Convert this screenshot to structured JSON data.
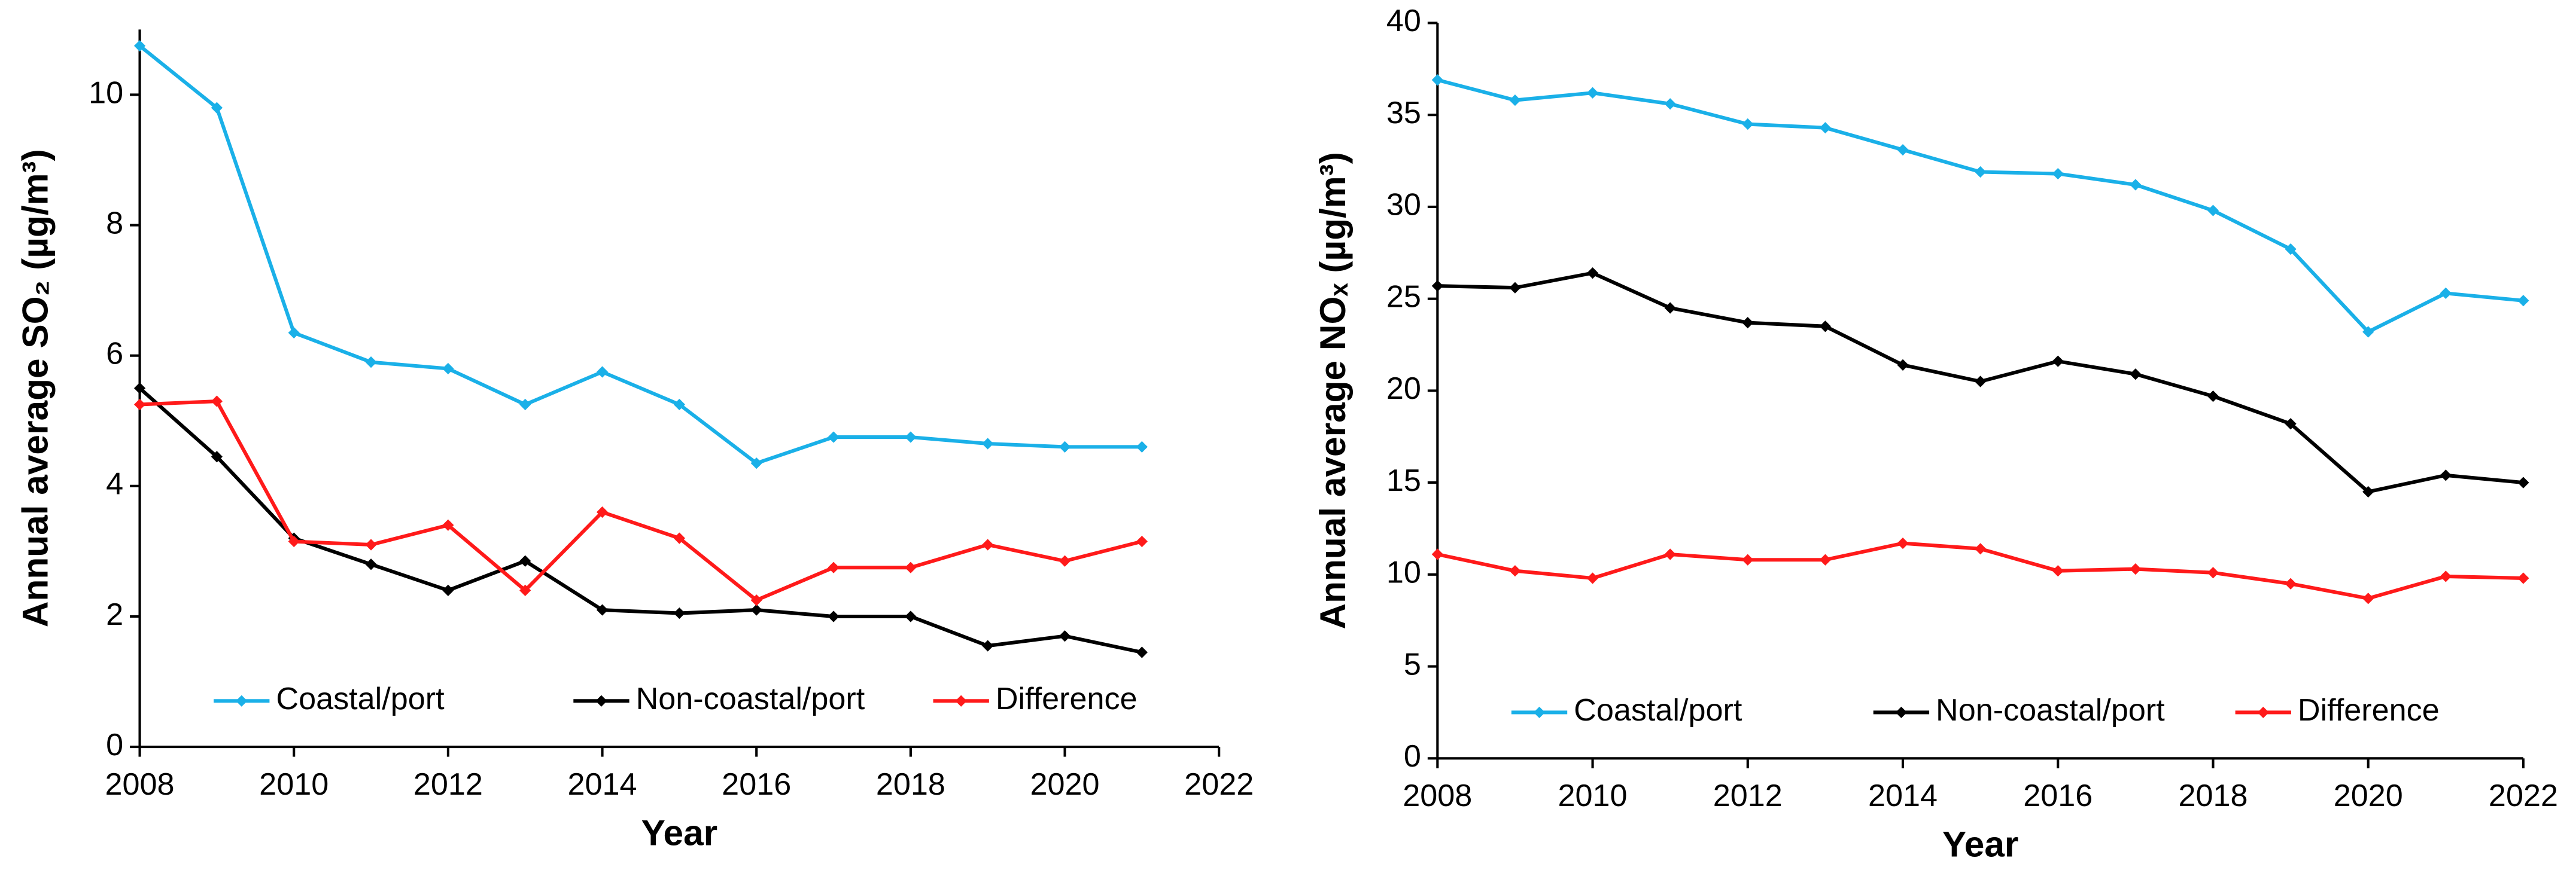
{
  "chart_data": [
    {
      "type": "line",
      "xlabel": "Year",
      "ylabel": "Annual average SO₂ (µg/m³)",
      "x": [
        2008,
        2009,
        2010,
        2011,
        2012,
        2013,
        2014,
        2015,
        2016,
        2017,
        2018,
        2019,
        2020,
        2021
      ],
      "xlim": [
        2008,
        2022
      ],
      "xticks": [
        2008,
        2010,
        2012,
        2014,
        2016,
        2018,
        2020,
        2022
      ],
      "ylim": [
        0,
        11
      ],
      "yticks": [
        0,
        2,
        4,
        6,
        8,
        10
      ],
      "legend": "lower center",
      "series": [
        {
          "name": "Coastal/port",
          "color": "#1ab0e8",
          "values": [
            10.75,
            9.8,
            6.35,
            5.9,
            5.8,
            5.25,
            5.75,
            5.25,
            4.35,
            4.75,
            4.75,
            4.65,
            4.6,
            4.6
          ]
        },
        {
          "name": "Non-coastal/port",
          "color": "#000000",
          "values": [
            5.5,
            4.45,
            3.2,
            2.8,
            2.4,
            2.85,
            2.1,
            2.05,
            2.1,
            2.0,
            2.0,
            1.55,
            1.7,
            1.45
          ]
        },
        {
          "name": "Difference",
          "color": "#ff1a1a",
          "values": [
            5.25,
            5.3,
            3.15,
            3.1,
            3.4,
            2.4,
            3.6,
            3.2,
            2.25,
            2.75,
            2.75,
            3.1,
            2.85,
            3.15
          ]
        }
      ]
    },
    {
      "type": "line",
      "xlabel": "Year",
      "ylabel": "Annual average NOₓ (µg/m³)",
      "x": [
        2008,
        2009,
        2010,
        2011,
        2012,
        2013,
        2014,
        2015,
        2016,
        2017,
        2018,
        2019,
        2020,
        2021,
        2022
      ],
      "xlim": [
        2008,
        2022
      ],
      "xticks": [
        2008,
        2010,
        2012,
        2014,
        2016,
        2018,
        2020,
        2022
      ],
      "ylim": [
        0,
        40
      ],
      "yticks": [
        0,
        5,
        10,
        15,
        20,
        25,
        30,
        35,
        40
      ],
      "legend": "lower center",
      "series": [
        {
          "name": "Coastal/port",
          "color": "#1ab0e8",
          "values": [
            36.9,
            35.8,
            36.2,
            35.6,
            34.5,
            34.3,
            33.1,
            31.9,
            31.8,
            31.2,
            29.8,
            27.7,
            23.2,
            25.3,
            24.9
          ]
        },
        {
          "name": "Non-coastal/port",
          "color": "#000000",
          "values": [
            25.7,
            25.6,
            26.4,
            24.5,
            23.7,
            23.5,
            21.4,
            20.5,
            21.6,
            20.9,
            19.7,
            18.2,
            14.5,
            15.4,
            15.0
          ]
        },
        {
          "name": "Difference",
          "color": "#ff1a1a",
          "values": [
            11.1,
            10.2,
            9.8,
            11.1,
            10.8,
            10.8,
            11.7,
            11.4,
            10.2,
            10.3,
            10.1,
            9.5,
            8.7,
            9.9,
            9.8
          ]
        }
      ]
    }
  ]
}
